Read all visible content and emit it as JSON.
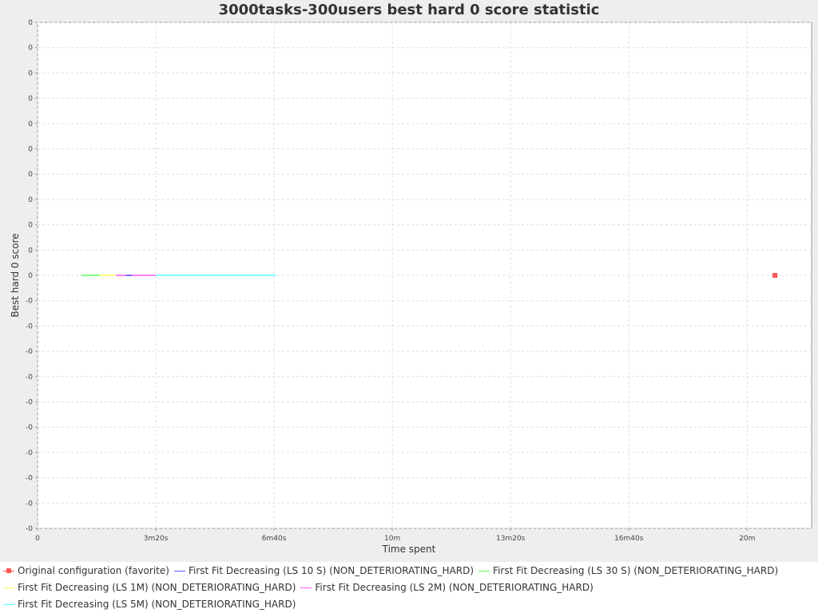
{
  "chart_data": {
    "type": "line",
    "title": "3000tasks-300users best hard 0 score statistic",
    "x_label": "Time spent",
    "y_label": "Best hard 0 score",
    "xlim": [
      0,
      1309
    ],
    "xticks": [
      0,
      {
        "value": 200,
        "label": "3m20s"
      },
      {
        "value": 400,
        "label": "6m40s"
      },
      {
        "value": 600,
        "label": "10m"
      },
      {
        "value": 800,
        "label": "13m20s"
      },
      {
        "value": 1000,
        "label": "16m40s"
      },
      {
        "value": 1200,
        "label": "20m"
      }
    ],
    "ylim": [
      -0.5,
      0.5
    ],
    "yticks": [
      {
        "value": 0.5,
        "label": "0"
      },
      {
        "value": 0.45,
        "label": "0"
      },
      {
        "value": 0.4,
        "label": "0"
      },
      {
        "value": 0.35,
        "label": "0"
      },
      {
        "value": 0.3,
        "label": "0"
      },
      {
        "value": 0.25,
        "label": "0"
      },
      {
        "value": 0.2,
        "label": "0"
      },
      {
        "value": 0.15,
        "label": "0"
      },
      {
        "value": 0.1,
        "label": "0"
      },
      {
        "value": 0.05,
        "label": "0"
      },
      0,
      {
        "value": -0.05,
        "label": "-0"
      },
      {
        "value": -0.1,
        "label": "-0"
      },
      {
        "value": -0.15,
        "label": "-0"
      },
      {
        "value": -0.2,
        "label": "-0"
      },
      {
        "value": -0.25,
        "label": "-0"
      },
      {
        "value": -0.3,
        "label": "-0"
      },
      {
        "value": -0.35,
        "label": "-0"
      },
      {
        "value": -0.4,
        "label": "-0"
      },
      {
        "value": -0.45,
        "label": "-0"
      },
      {
        "value": -0.5,
        "label": "-0"
      }
    ],
    "grid": true,
    "series": [
      {
        "name": "Original configuration (favorite)",
        "color": "#ff5555",
        "marker": "square",
        "x": [
          1247
        ],
        "values": [
          0
        ]
      },
      {
        "name": "First Fit Decreasing (LS 10 S) (NON_DETERIORATING_HARD)",
        "color": "#5555ff",
        "x": [
          149,
          160
        ],
        "values": [
          0,
          0
        ]
      },
      {
        "name": "First Fit Decreasing (LS 30 S) (NON_DETERIORATING_HARD)",
        "color": "#55ff55",
        "x": [
          74,
          105
        ],
        "values": [
          0,
          0
        ]
      },
      {
        "name": "First Fit Decreasing (LS 1M) (NON_DETERIORATING_HARD)",
        "color": "#ffff55",
        "x": [
          105,
          132
        ],
        "values": [
          0,
          0
        ]
      },
      {
        "name": "First Fit Decreasing (LS 2M) (NON_DETERIORATING_HARD)",
        "color": "#ff55ff",
        "x": [
          132,
          200
        ],
        "values": [
          0,
          0
        ]
      },
      {
        "name": "First Fit Decreasing (LS 5M) (NON_DETERIORATING_HARD)",
        "color": "#55ffff",
        "x": [
          200,
          403
        ],
        "values": [
          0,
          0
        ]
      }
    ]
  }
}
